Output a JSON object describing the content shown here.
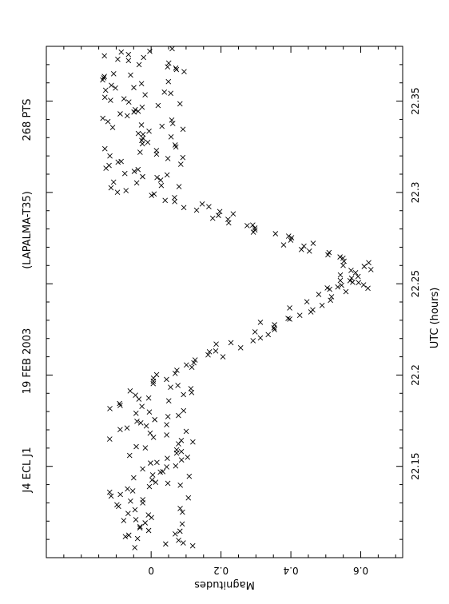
{
  "chart_data": {
    "type": "scatter",
    "orientation": "rotated 90 degrees clockwise (x axis runs bottom-to-top along the right edge, y axis runs left-to-right along the bottom)",
    "header": {
      "object": "J4 ECL J1",
      "date": "19 FEB 2003",
      "telescope": "(LAPALMA-T35)",
      "points": "268 PTS"
    },
    "xlabel": "UTC (hours)",
    "ylabel": "Magnitudes",
    "xlim": [
      22.1,
      22.38
    ],
    "ylim": [
      -0.3,
      0.72
    ],
    "y_inverted": false,
    "x_ticks": [
      22.15,
      22.2,
      22.25,
      22.3,
      22.35
    ],
    "x_tick_labels": [
      "22.15",
      "22.2",
      "22.25",
      "22.3",
      "22.35"
    ],
    "y_ticks": [
      0,
      0.2,
      0.4,
      0.6
    ],
    "y_tick_labels": [
      "0",
      "0.2",
      "0.4",
      "0.6"
    ],
    "marker": "x",
    "grid": false,
    "data_segments": [
      {
        "description": "out-of-eclipse before ingress",
        "x_range": [
          22.105,
          22.198
        ],
        "y_center": 0.0,
        "y_scatter": 0.12
      },
      {
        "description": "eclipse ingress",
        "x_range": [
          22.198,
          22.253
        ],
        "y_start": 0.04,
        "y_end": 0.6,
        "y_scatter": 0.05
      },
      {
        "description": "eclipse minimum",
        "x_range": [
          22.247,
          22.262
        ],
        "y_center": 0.58,
        "y_scatter": 0.05
      },
      {
        "description": "eclipse egress",
        "x_range": [
          22.262,
          22.3
        ],
        "y_start": 0.56,
        "y_end": 0.02,
        "y_scatter": 0.05
      },
      {
        "description": "out-of-eclipse after egress",
        "x_range": [
          22.3,
          22.38
        ],
        "y_center": -0.02,
        "y_scatter": 0.12
      }
    ],
    "n_points": 268
  }
}
